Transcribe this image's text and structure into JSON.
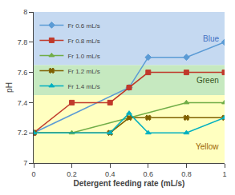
{
  "chart_data": {
    "type": "line",
    "x": [
      0,
      0.2,
      0.4,
      0.5,
      0.6,
      0.8,
      1.0
    ],
    "series": [
      {
        "name": "Fr 0.6 mL/s",
        "color": "#5B9BD5",
        "marker": "diamond",
        "values": [
          7.2,
          null,
          null,
          7.5,
          7.7,
          7.7,
          7.8
        ]
      },
      {
        "name": "Fr 0.8 mL/s",
        "color": "#C0392B",
        "marker": "square",
        "values": [
          7.2,
          7.4,
          7.4,
          7.5,
          7.6,
          7.6,
          7.6
        ]
      },
      {
        "name": "Fr 1.0 mL/s",
        "color": "#70AD47",
        "marker": "triangle-up",
        "values": [
          7.2,
          7.2,
          null,
          null,
          null,
          7.4,
          7.4
        ]
      },
      {
        "name": "Fr 1.2 mL/s",
        "color": "#7F6000",
        "marker": "x",
        "values": [
          7.2,
          null,
          7.2,
          7.3,
          7.3,
          7.3,
          7.3
        ]
      },
      {
        "name": "Fr 1.4 mL/s",
        "color": "#00B0C0",
        "marker": "triangle-up",
        "values": [
          7.2,
          null,
          7.2,
          7.33,
          7.2,
          7.2,
          7.3
        ]
      }
    ],
    "xlabel": "Detergent feeding rate (mL/s)",
    "ylabel": "pH",
    "xlim": [
      0,
      1.0
    ],
    "ylim": [
      7.0,
      8.0
    ],
    "xticks": [
      0,
      0.2,
      0.4,
      0.6,
      0.8,
      1.0
    ],
    "yticks": [
      7.0,
      7.2,
      7.4,
      7.6,
      7.8,
      8.0
    ],
    "bands": [
      {
        "ymin": 7.0,
        "ymax": 7.45,
        "color": "#FFFFC0",
        "label": "Yellow",
        "label_color": "#9C6500"
      },
      {
        "ymin": 7.45,
        "ymax": 7.65,
        "color": "#C6E9C0",
        "label": "Green",
        "label_color": "#375623"
      },
      {
        "ymin": 7.65,
        "ymax": 8.0,
        "color": "#C5D9F1",
        "label": "Blue",
        "label_color": "#4472C4"
      }
    ],
    "legend": "upper left",
    "grid": false
  }
}
